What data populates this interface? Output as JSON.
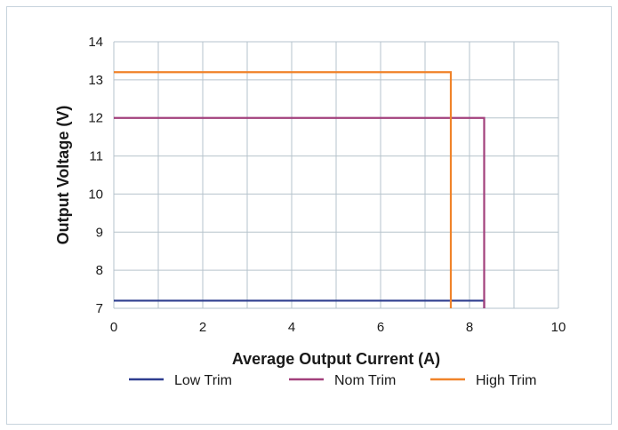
{
  "chart_data": {
    "type": "line",
    "title": "",
    "xlabel": "Average Output Current (A)",
    "ylabel": "Output Voltage (V)",
    "xlim": [
      0,
      10
    ],
    "ylim": [
      7,
      14
    ],
    "xticks": [
      0,
      2,
      4,
      6,
      8,
      10
    ],
    "yticks": [
      7,
      8,
      9,
      10,
      11,
      12,
      13,
      14
    ],
    "grid": true,
    "legend_position": "bottom",
    "series": [
      {
        "name": "Low Trim",
        "color": "#2e3d8f",
        "points": [
          [
            0,
            7.2
          ],
          [
            8.33,
            7.2
          ],
          [
            8.33,
            7.0
          ]
        ]
      },
      {
        "name": "Nom Trim",
        "color": "#a2407c",
        "points": [
          [
            0,
            12.0
          ],
          [
            8.33,
            12.0
          ],
          [
            8.33,
            7.0
          ]
        ]
      },
      {
        "name": "High Trim",
        "color": "#f0832a",
        "points": [
          [
            0,
            13.2
          ],
          [
            7.58,
            13.2
          ],
          [
            7.58,
            7.0
          ]
        ]
      }
    ]
  }
}
